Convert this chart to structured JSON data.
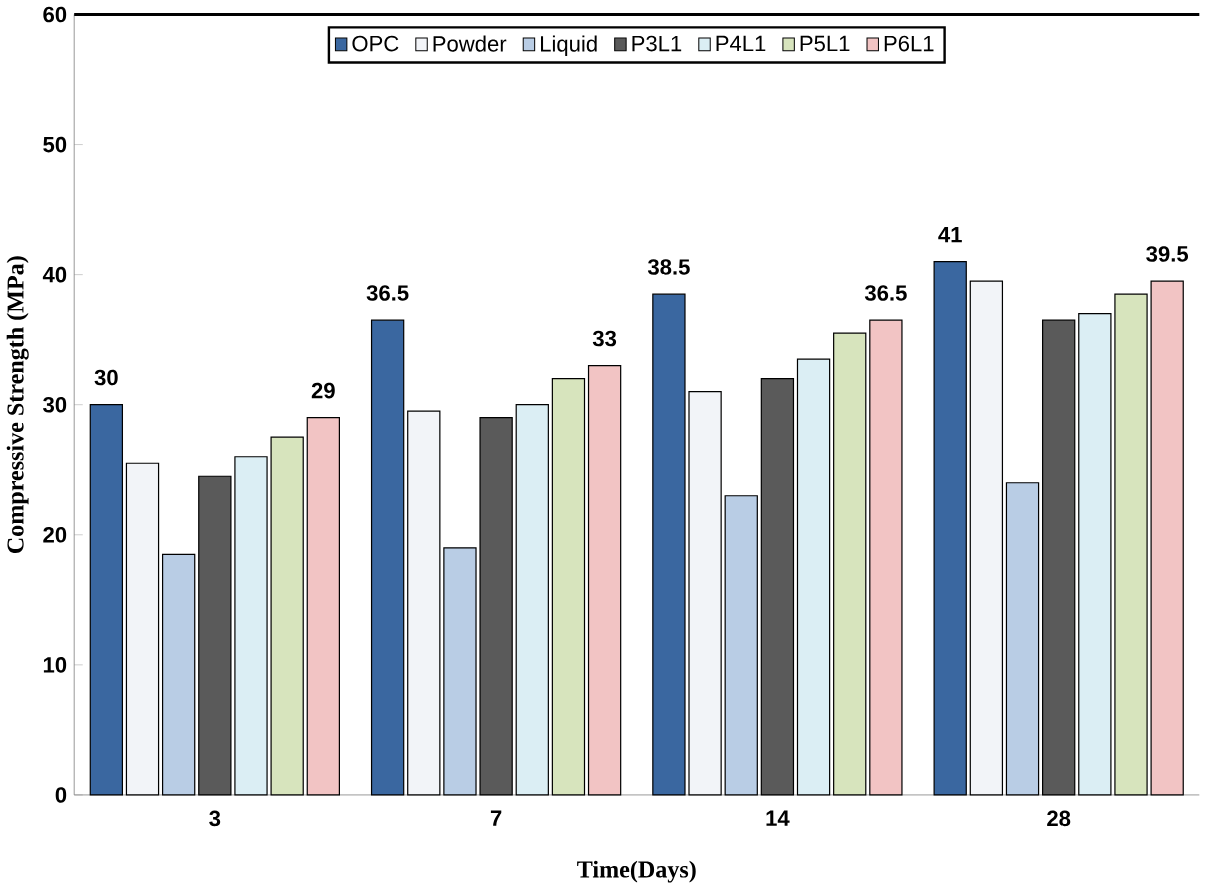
{
  "chart_data": {
    "type": "bar",
    "xlabel": "Time(Days)",
    "ylabel": "Compressive Strength (MPa)",
    "categories": [
      "3",
      "7",
      "14",
      "28"
    ],
    "series": [
      {
        "name": "OPC",
        "color": "#3a67a0",
        "values": [
          30,
          36.5,
          38.5,
          41
        ],
        "value_labels": [
          "30",
          "36.5",
          "38.5",
          "41"
        ]
      },
      {
        "name": "Powder",
        "color": "#f2f4f8",
        "values": [
          25.5,
          29.5,
          31,
          39.5
        ]
      },
      {
        "name": "Liquid",
        "color": "#b9cde5",
        "values": [
          18.5,
          19,
          23,
          24
        ]
      },
      {
        "name": "P3L1",
        "color": "#5a5a5a",
        "values": [
          24.5,
          29,
          32,
          36.5
        ]
      },
      {
        "name": "P4L1",
        "color": "#dbeef4",
        "values": [
          26,
          30,
          33.5,
          37
        ]
      },
      {
        "name": "P5L1",
        "color": "#d7e4bd",
        "values": [
          27.5,
          32,
          35.5,
          38.5
        ]
      },
      {
        "name": "P6L1",
        "color": "#f2c4c4",
        "values": [
          29,
          33,
          36.5,
          39.5
        ],
        "value_labels": [
          "29",
          "33",
          "36.5",
          "39.5"
        ]
      }
    ],
    "ylim": [
      0,
      60
    ],
    "yticks": [
      0,
      10,
      20,
      30,
      40,
      50,
      60
    ],
    "grid": false,
    "legend": "top"
  }
}
